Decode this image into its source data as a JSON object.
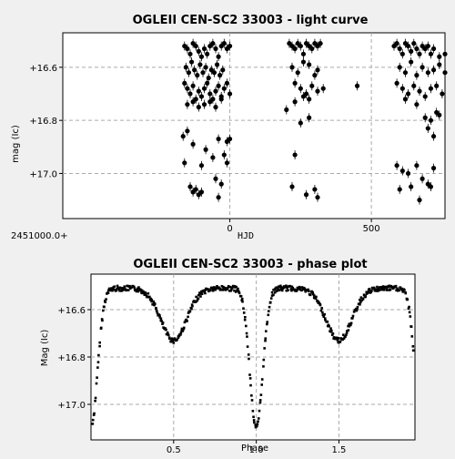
{
  "chart_data": [
    {
      "type": "scatter",
      "title": "OGLEII CEN-SC2 33003 - light curve",
      "xlabel": "HJD",
      "ylabel": "mag (Ic)",
      "x_offset_label": "2451000.0+",
      "xlim": [
        -590,
        760
      ],
      "ylim": [
        17.17,
        16.47
      ],
      "y_inverted": true,
      "xticks": [
        0,
        500
      ],
      "xtick_labels": [
        "0",
        "500"
      ],
      "yticks": [
        16.6,
        16.8,
        17.0
      ],
      "ytick_labels": [
        "+16.6",
        "+16.8",
        "+17.0"
      ],
      "grid": true,
      "error_bars": true,
      "series": [
        {
          "points": [
            [
              -160,
              16.52
            ],
            [
              -150,
              16.53
            ],
            [
              -140,
              16.55
            ],
            [
              -130,
              16.51
            ],
            [
              -120,
              16.52
            ],
            [
              -110,
              16.54
            ],
            [
              -100,
              16.56
            ],
            [
              -90,
              16.53
            ],
            [
              -80,
              16.55
            ],
            [
              -70,
              16.52
            ],
            [
              -60,
              16.51
            ],
            [
              -50,
              16.53
            ],
            [
              -40,
              16.56
            ],
            [
              -30,
              16.52
            ],
            [
              -20,
              16.51
            ],
            [
              -10,
              16.53
            ],
            [
              0,
              16.52
            ],
            [
              -155,
              16.6
            ],
            [
              -145,
              16.62
            ],
            [
              -135,
              16.58
            ],
            [
              -125,
              16.61
            ],
            [
              -115,
              16.63
            ],
            [
              -105,
              16.59
            ],
            [
              -95,
              16.62
            ],
            [
              -85,
              16.6
            ],
            [
              -75,
              16.64
            ],
            [
              -65,
              16.61
            ],
            [
              -55,
              16.62
            ],
            [
              -45,
              16.59
            ],
            [
              -35,
              16.63
            ],
            [
              -25,
              16.61
            ],
            [
              -160,
              16.66
            ],
            [
              -150,
              16.68
            ],
            [
              -140,
              16.7
            ],
            [
              -130,
              16.67
            ],
            [
              -120,
              16.72
            ],
            [
              -110,
              16.69
            ],
            [
              -100,
              16.71
            ],
            [
              -90,
              16.68
            ],
            [
              -80,
              16.66
            ],
            [
              -70,
              16.7
            ],
            [
              -60,
              16.72
            ],
            [
              -50,
              16.69
            ],
            [
              -40,
              16.67
            ],
            [
              -30,
              16.71
            ],
            [
              -20,
              16.68
            ],
            [
              -10,
              16.66
            ],
            [
              0,
              16.7
            ],
            [
              -150,
              16.74
            ],
            [
              -130,
              16.73
            ],
            [
              -110,
              16.75
            ],
            [
              -90,
              16.74
            ],
            [
              -70,
              16.73
            ],
            [
              -50,
              16.75
            ],
            [
              -30,
              16.72
            ],
            [
              -165,
              16.86
            ],
            [
              -150,
              16.84
            ],
            [
              -130,
              16.89
            ],
            [
              -40,
              16.87
            ],
            [
              -10,
              16.88
            ],
            [
              0,
              16.87
            ],
            [
              -85,
              16.91
            ],
            [
              -60,
              16.94
            ],
            [
              -20,
              16.93
            ],
            [
              -160,
              16.96
            ],
            [
              -100,
              16.97
            ],
            [
              -50,
              17.02
            ],
            [
              -10,
              16.96
            ],
            [
              -140,
              17.05
            ],
            [
              -120,
              17.06
            ],
            [
              -30,
              17.04
            ],
            [
              -130,
              17.07
            ],
            [
              -110,
              17.08
            ],
            [
              -100,
              17.07
            ],
            [
              -40,
              17.09
            ],
            [
              210,
              16.51
            ],
            [
              220,
              16.52
            ],
            [
              230,
              16.53
            ],
            [
              240,
              16.51
            ],
            [
              250,
              16.52
            ],
            [
              260,
              16.55
            ],
            [
              270,
              16.51
            ],
            [
              280,
              16.52
            ],
            [
              290,
              16.53
            ],
            [
              300,
              16.51
            ],
            [
              310,
              16.52
            ],
            [
              320,
              16.51
            ],
            [
              220,
              16.6
            ],
            [
              240,
              16.62
            ],
            [
              260,
              16.58
            ],
            [
              280,
              16.59
            ],
            [
              300,
              16.63
            ],
            [
              310,
              16.61
            ],
            [
              230,
              16.66
            ],
            [
              250,
              16.68
            ],
            [
              270,
              16.7
            ],
            [
              290,
              16.67
            ],
            [
              310,
              16.69
            ],
            [
              330,
              16.68
            ],
            [
              230,
              16.73
            ],
            [
              260,
              16.71
            ],
            [
              280,
              16.72
            ],
            [
              200,
              16.76
            ],
            [
              250,
              16.81
            ],
            [
              230,
              16.93
            ],
            [
              280,
              16.79
            ],
            [
              220,
              17.05
            ],
            [
              270,
              17.08
            ],
            [
              300,
              17.06
            ],
            [
              310,
              17.09
            ],
            [
              450,
              16.67
            ],
            [
              580,
              16.52
            ],
            [
              590,
              16.51
            ],
            [
              600,
              16.53
            ],
            [
              610,
              16.55
            ],
            [
              620,
              16.51
            ],
            [
              630,
              16.52
            ],
            [
              640,
              16.54
            ],
            [
              650,
              16.51
            ],
            [
              660,
              16.53
            ],
            [
              670,
              16.55
            ],
            [
              680,
              16.52
            ],
            [
              690,
              16.53
            ],
            [
              700,
              16.52
            ],
            [
              710,
              16.55
            ],
            [
              720,
              16.53
            ],
            [
              740,
              16.56
            ],
            [
              760,
              16.55
            ],
            [
              600,
              16.6
            ],
            [
              620,
              16.62
            ],
            [
              640,
              16.58
            ],
            [
              660,
              16.63
            ],
            [
              680,
              16.6
            ],
            [
              700,
              16.62
            ],
            [
              720,
              16.61
            ],
            [
              740,
              16.59
            ],
            [
              760,
              16.62
            ],
            [
              590,
              16.66
            ],
            [
              610,
              16.68
            ],
            [
              630,
              16.7
            ],
            [
              650,
              16.67
            ],
            [
              670,
              16.69
            ],
            [
              690,
              16.71
            ],
            [
              710,
              16.68
            ],
            [
              730,
              16.67
            ],
            [
              750,
              16.7
            ],
            [
              620,
              16.72
            ],
            [
              660,
              16.74
            ],
            [
              690,
              16.79
            ],
            [
              710,
              16.8
            ],
            [
              730,
              16.77
            ],
            [
              700,
              16.83
            ],
            [
              720,
              16.86
            ],
            [
              740,
              16.78
            ],
            [
              590,
              16.97
            ],
            [
              610,
              16.99
            ],
            [
              630,
              17.0
            ],
            [
              660,
              16.97
            ],
            [
              680,
              17.02
            ],
            [
              700,
              17.04
            ],
            [
              720,
              16.98
            ],
            [
              600,
              17.06
            ],
            [
              640,
              17.05
            ],
            [
              670,
              17.1
            ],
            [
              710,
              17.05
            ]
          ]
        }
      ]
    },
    {
      "type": "scatter",
      "title": "OGLEII CEN-SC2 33003 - phase plot",
      "xlabel": "Phase",
      "ylabel": "Mag (Ic)",
      "xlim": [
        0.0,
        1.96
      ],
      "ylim": [
        17.15,
        16.45
      ],
      "y_inverted": true,
      "xticks": [
        0.5,
        1.0,
        1.5
      ],
      "xtick_labels": [
        "0.5",
        "1.0",
        "1.5"
      ],
      "yticks": [
        16.6,
        16.8,
        17.0
      ],
      "ytick_labels": [
        "+16.6",
        "+16.8",
        "+17.0"
      ],
      "grid": true,
      "curve_model": {
        "period_in_phase": 1.0,
        "primary_min_phase": 0.0,
        "secondary_min_phase": 0.5,
        "max_mag": 16.51,
        "secondary_min_mag": 16.73,
        "primary_min_mag": 17.1
      }
    }
  ]
}
